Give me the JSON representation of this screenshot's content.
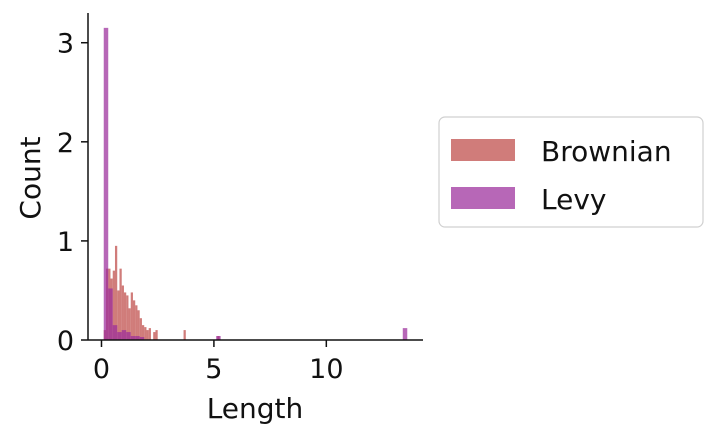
{
  "chart_data": {
    "type": "histogram",
    "xlabel": "Length",
    "ylabel": "Count",
    "xlim": [
      -0.6,
      14.3
    ],
    "ylim": [
      0,
      3.3
    ],
    "x_ticks": [
      0,
      5,
      10
    ],
    "y_ticks": [
      0,
      1,
      2,
      3
    ],
    "grid": false,
    "legend_position": "right",
    "series": [
      {
        "name": "Brownian",
        "color": "#c0504d",
        "opacity": 0.75,
        "bins": [
          {
            "x0": 0.1,
            "x1": 0.2,
            "count": 0.1
          },
          {
            "x0": 0.2,
            "x1": 0.3,
            "count": 0.72
          },
          {
            "x0": 0.3,
            "x1": 0.4,
            "count": 0.72
          },
          {
            "x0": 0.4,
            "x1": 0.5,
            "count": 0.62
          },
          {
            "x0": 0.5,
            "x1": 0.6,
            "count": 0.7
          },
          {
            "x0": 0.6,
            "x1": 0.7,
            "count": 0.95
          },
          {
            "x0": 0.7,
            "x1": 0.8,
            "count": 0.5
          },
          {
            "x0": 0.8,
            "x1": 0.9,
            "count": 0.72
          },
          {
            "x0": 0.9,
            "x1": 1.0,
            "count": 0.55
          },
          {
            "x0": 1.0,
            "x1": 1.1,
            "count": 0.48
          },
          {
            "x0": 1.1,
            "x1": 1.2,
            "count": 0.45
          },
          {
            "x0": 1.2,
            "x1": 1.3,
            "count": 0.32
          },
          {
            "x0": 1.3,
            "x1": 1.4,
            "count": 0.48
          },
          {
            "x0": 1.4,
            "x1": 1.5,
            "count": 0.4
          },
          {
            "x0": 1.5,
            "x1": 1.6,
            "count": 0.35
          },
          {
            "x0": 1.6,
            "x1": 1.7,
            "count": 0.3
          },
          {
            "x0": 1.7,
            "x1": 1.8,
            "count": 0.22
          },
          {
            "x0": 1.8,
            "x1": 1.9,
            "count": 0.15
          },
          {
            "x0": 1.9,
            "x1": 2.0,
            "count": 0.13
          },
          {
            "x0": 2.0,
            "x1": 2.1,
            "count": 0.1
          },
          {
            "x0": 2.1,
            "x1": 2.2,
            "count": 0.12
          },
          {
            "x0": 2.3,
            "x1": 2.4,
            "count": 0.08
          },
          {
            "x0": 2.4,
            "x1": 2.5,
            "count": 0.1
          },
          {
            "x0": 3.65,
            "x1": 3.75,
            "count": 0.1
          },
          {
            "x0": 5.15,
            "x1": 5.25,
            "count": 0.04
          }
        ]
      },
      {
        "name": "Levy",
        "color": "#9b2d9b",
        "opacity": 0.72,
        "bins": [
          {
            "x0": 0.1,
            "x1": 0.3,
            "count": 3.15
          },
          {
            "x0": 0.3,
            "x1": 0.5,
            "count": 0.52
          },
          {
            "x0": 0.5,
            "x1": 0.7,
            "count": 0.15
          },
          {
            "x0": 0.7,
            "x1": 0.9,
            "count": 0.08
          },
          {
            "x0": 0.9,
            "x1": 1.1,
            "count": 0.1
          },
          {
            "x0": 1.1,
            "x1": 1.3,
            "count": 0.08
          },
          {
            "x0": 1.3,
            "x1": 1.5,
            "count": 0.04
          },
          {
            "x0": 1.5,
            "x1": 1.7,
            "count": 0.04
          },
          {
            "x0": 1.7,
            "x1": 1.9,
            "count": 0.03
          },
          {
            "x0": 5.1,
            "x1": 5.3,
            "count": 0.04
          },
          {
            "x0": 13.4,
            "x1": 13.6,
            "count": 0.12
          }
        ]
      }
    ]
  }
}
